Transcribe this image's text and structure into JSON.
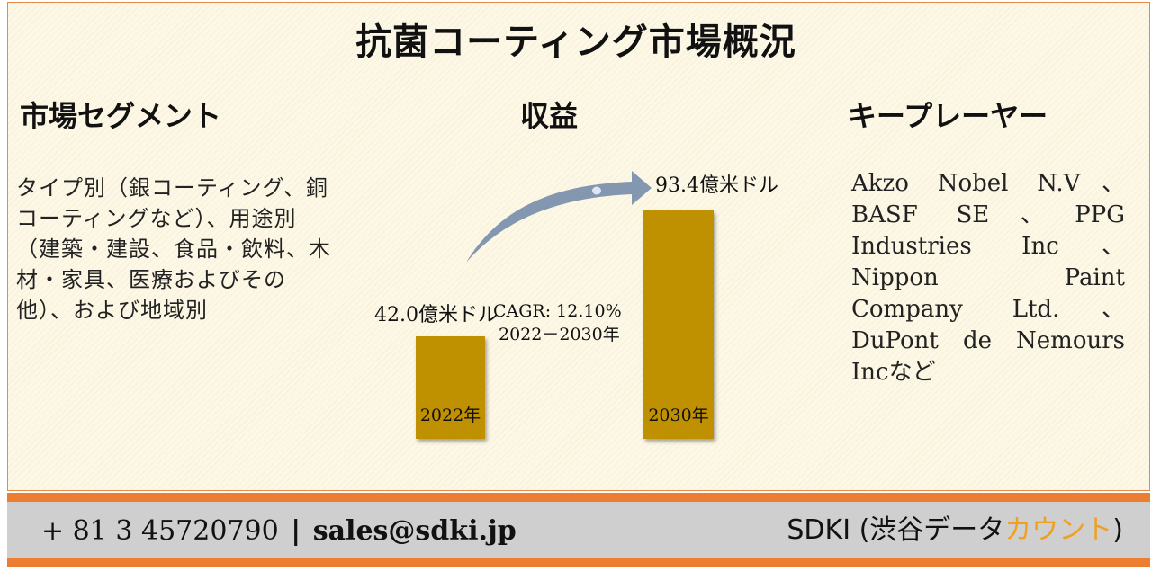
{
  "title": "抗菌コーティング市場概況",
  "segments": {
    "heading": "市場セグメント",
    "text": "タイプ別（銀コーティング、銅コーティングなど）、用途別（建築・建設、食品・飲料、木材・家具、医療およびその他）、および地域別"
  },
  "revenue": {
    "heading": "収益",
    "cagr_label": "CAGR: 12.10%",
    "cagr_period": "2022－2030年"
  },
  "players": {
    "heading": "キープレーヤー",
    "text": "Akzo Nobel N.V、BASF SE、PPG Industries Inc、Nippon Paint Company Ltd.、DuPont de Nemours Incなど"
  },
  "chart_data": {
    "type": "bar",
    "categories": [
      "2022年",
      "2030年"
    ],
    "values": [
      42.0,
      93.4
    ],
    "value_labels": [
      "42.0億米ドル",
      "93.4億米ドル"
    ],
    "title": "",
    "xlabel": "",
    "ylabel": ""
  },
  "footer": {
    "phone": "+ 81 3 45720790",
    "separator": "|",
    "email": "sales@sdki.jp",
    "brand_main": "SDKI (渋谷データ",
    "brand_accent": "カウント",
    "brand_close": ")"
  },
  "colors": {
    "bar": "#bf9000",
    "accent": "#ed7d31",
    "arrow": "#8497b0",
    "brand_accent": "#f0a020"
  }
}
